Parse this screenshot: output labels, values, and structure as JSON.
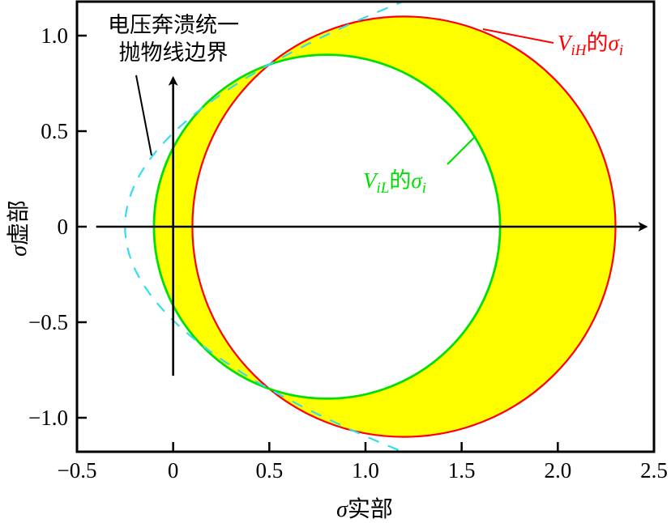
{
  "chart_data": {
    "type": "line",
    "title": "",
    "xlabel": "σ实部",
    "ylabel": "σ虚部",
    "xlim": [
      -0.5,
      2.5
    ],
    "ylim": [
      -1.2,
      1.2
    ],
    "x_ticks": [
      -0.5,
      0,
      0.5,
      1.0,
      1.5,
      2.0,
      2.5
    ],
    "x_tick_labels": [
      "−0.5",
      "0",
      "0.5",
      "1.0",
      "1.5",
      "2.0",
      "2.5"
    ],
    "y_ticks": [
      1.0,
      0.5,
      0,
      -0.5,
      -1.0
    ],
    "y_tick_labels": [
      "1.0",
      "0.5",
      "0",
      "−0.5",
      "−1.0"
    ],
    "grid": false,
    "legend": "none (inline annotations)",
    "series": [
      {
        "name": "V_iH的σ_i",
        "kind": "circle",
        "center": [
          1.2,
          0
        ],
        "radius": 1.1,
        "color": "#ff0000"
      },
      {
        "name": "V_iL的σ_i",
        "kind": "circle",
        "center": [
          0.8,
          0
        ],
        "radius": 0.9,
        "color": "#00e000"
      },
      {
        "name": "电压奔溃统一抛物线边界",
        "kind": "parabola",
        "equation": "σ_real = -0.25 + 1.04·σ_imag²",
        "vertex": [
          -0.25,
          0
        ],
        "points": [
          [
            -0.25,
            0
          ],
          [
            0.0,
            0.49
          ],
          [
            0.5,
            0.85
          ],
          [
            1.15,
            1.15
          ],
          [
            0.0,
            -0.49
          ],
          [
            0.5,
            -0.85
          ],
          [
            1.15,
            -1.15
          ]
        ],
        "style": "dashed",
        "color": "#33ddee"
      }
    ],
    "shaded_region": {
      "description": "Area between the two circles (symmetric difference) filled yellow",
      "color": "#ffff00"
    },
    "arrows": [
      {
        "name": "real-axis-arrow",
        "from": [
          -0.4,
          0
        ],
        "to": [
          2.46,
          0
        ]
      },
      {
        "name": "imag-axis-arrow",
        "from": [
          0,
          -0.78
        ],
        "to": [
          0,
          0.78
        ]
      }
    ],
    "annotations": [
      {
        "text": "电压奔溃统一",
        "line2": "抛物线边界",
        "color": "#000000",
        "points_to": [
          -0.1,
          0.38
        ]
      },
      {
        "text_main": "V",
        "text_sub": "iH",
        "text_mid": "的",
        "text_sigma": "σ",
        "text_sigma_sub": "i",
        "color": "#ff0000",
        "points_to": [
          1.6,
          1.02
        ]
      },
      {
        "text_main": "V",
        "text_sub": "iL",
        "text_mid": "的",
        "text_sigma": "σ",
        "text_sigma_sub": "i",
        "color": "#00e000",
        "points_to": [
          1.57,
          0.48
        ]
      }
    ]
  },
  "labels": {
    "xlabel_sigma": "σ",
    "xlabel_text": "实部",
    "ylabel_sigma": "σ",
    "ylabel_text": "虚部",
    "boundary_line1": "电压奔溃统一",
    "boundary_line2": "抛物线边界",
    "vih_V": "V",
    "vih_sub": "iH",
    "vih_de": "的",
    "vih_sigma": "σ",
    "vih_i": "i",
    "vil_V": "V",
    "vil_sub": "iL",
    "vil_de": "的",
    "vil_sigma": "σ",
    "vil_i": "i"
  },
  "colors": {
    "red_circle": "#ff0000",
    "green_circle": "#00e000",
    "fill": "#ffff00",
    "parabola": "#33ddee",
    "axes": "#000000"
  }
}
